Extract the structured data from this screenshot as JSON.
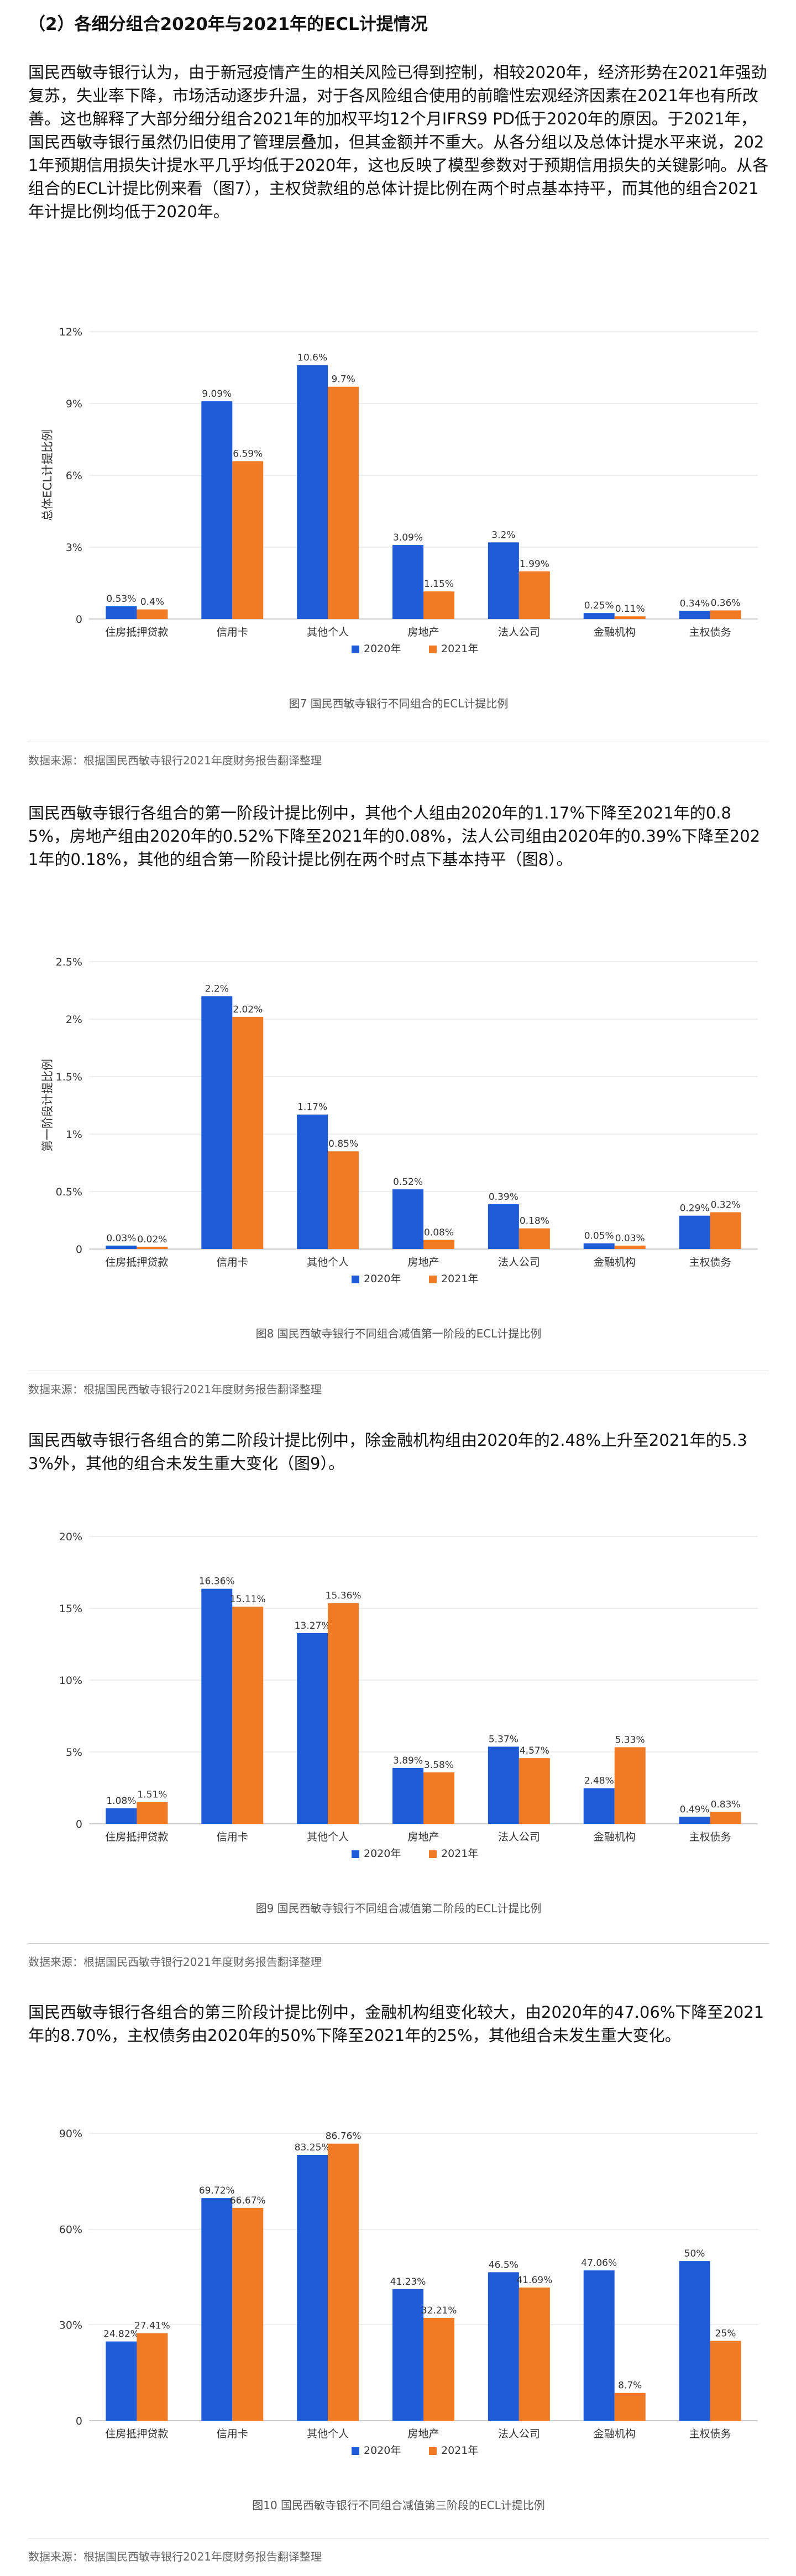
{
  "section_title": "（2）各细分组合2020年与2021年的ECL计提情况",
  "paragraphs": [
    "国民西敏寺银行认为，由于新冠疫情产生的相关风险已得到控制，相较2020年，经济形势在2021年强劲复苏，失业率下降，市场活动逐步升温，对于各风险组合使用的前瞻性宏观经济因素在2021年也有所改善。这也解释了大部分细分组合2021年的加权平均12个月IFRS9 PD低于2020年的原因。于2021年，国民西敏寺银行虽然仍旧使用了管理层叠加，但其金额并不重大。从各分组以及总体计提水平来说，2021年预期信用损失计提水平几乎均低于2020年，这也反映了模型参数对于预期信用损失的关键影响。从各组合的ECL计提比例来看（图7），主权贷款组的总体计提比例在两个时点基本持平，而其他的组合2021年计提比例均低于2020年。",
    "国民西敏寺银行各组合的第一阶段计提比例中，其他个人组由2020年的1.17%下降至2021年的0.85%，房地产组由2020年的0.52%下降至2021年的0.08%，法人公司组由2020年的0.39%下降至2021年的0.18%，其他的组合第一阶段计提比例在两个时点下基本持平（图8）。",
    "国民西敏寺银行各组合的第二阶段计提比例中，除金融机构组由2020年的2.48%上升至2021年的5.33%外，其他的组合未发生重大变化（图9）。",
    "国民西敏寺银行各组合的第三阶段计提比例中，金融机构组变化较大，由2020年的47.06%下降至2021年的8.70%，主权债务由2020年的50%下降至2021年的25%，其他组合未发生重大变化。"
  ],
  "source_note": "数据来源：根据国民西敏寺银行2021年度财务报告翻译整理",
  "series_colors": [
    "#1f5bd6",
    "#f07b24"
  ],
  "chart_data": [
    {
      "type": "bar",
      "title": "图7 国民西敏寺银行不同组合的ECL计提比例",
      "ylabel": "总体ECL计提比例",
      "xlabel": "",
      "ylim": [
        0,
        12
      ],
      "yticks": [
        0,
        3,
        6,
        9,
        12
      ],
      "ytick_labels": [
        "0",
        "3%",
        "6%",
        "9%",
        "12%"
      ],
      "grid": true,
      "legend": "bottom",
      "categories": [
        "住房抵押贷款",
        "信用卡",
        "其他个人",
        "房地产",
        "法人公司",
        "金融机构",
        "主权债务"
      ],
      "series": [
        {
          "name": "2020年",
          "values": [
            0.53,
            9.09,
            10.6,
            3.09,
            3.2,
            0.25,
            0.34
          ],
          "labels": [
            "0.53%",
            "9.09%",
            "10.6%",
            "3.09%",
            "3.2%",
            "0.25%",
            "0.34%"
          ]
        },
        {
          "name": "2021年",
          "values": [
            0.4,
            6.59,
            9.7,
            1.15,
            1.99,
            0.11,
            0.36
          ],
          "labels": [
            "0.4%",
            "6.59%",
            "9.7%",
            "1.15%",
            "1.99%",
            "0.11%",
            "0.36%"
          ]
        }
      ]
    },
    {
      "type": "bar",
      "title": "图8 国民西敏寺银行不同组合减值第一阶段的ECL计提比例",
      "ylabel": "第一阶段计提比例",
      "xlabel": "",
      "ylim": [
        0,
        2.5
      ],
      "yticks": [
        0,
        0.5,
        1,
        1.5,
        2,
        2.5
      ],
      "ytick_labels": [
        "0",
        "0.5%",
        "1%",
        "1.5%",
        "2%",
        "2.5%"
      ],
      "grid": true,
      "legend": "bottom",
      "categories": [
        "住房抵押贷款",
        "信用卡",
        "其他个人",
        "房地产",
        "法人公司",
        "金融机构",
        "主权债务"
      ],
      "series": [
        {
          "name": "2020年",
          "values": [
            0.03,
            2.2,
            1.17,
            0.52,
            0.39,
            0.05,
            0.29
          ],
          "labels": [
            "0.03%",
            "2.2%",
            "1.17%",
            "0.52%",
            "0.39%",
            "0.05%",
            "0.29%"
          ]
        },
        {
          "name": "2021年",
          "values": [
            0.02,
            2.02,
            0.85,
            0.08,
            0.18,
            0.03,
            0.32
          ],
          "labels": [
            "0.02%",
            "2.02%",
            "0.85%",
            "0.08%",
            "0.18%",
            "0.03%",
            "0.32%"
          ]
        }
      ]
    },
    {
      "type": "bar",
      "title": "图9 国民西敏寺银行不同组合减值第二阶段的ECL计提比例",
      "ylabel": "",
      "xlabel": "",
      "ylim": [
        0,
        20
      ],
      "yticks": [
        0,
        5,
        10,
        15,
        20
      ],
      "ytick_labels": [
        "0",
        "5%",
        "10%",
        "15%",
        "20%"
      ],
      "grid": true,
      "legend": "bottom",
      "categories": [
        "住房抵押贷款",
        "信用卡",
        "其他个人",
        "房地产",
        "法人公司",
        "金融机构",
        "主权债务"
      ],
      "series": [
        {
          "name": "2020年",
          "values": [
            1.08,
            16.36,
            13.27,
            3.89,
            5.37,
            2.48,
            0.49
          ],
          "labels": [
            "1.08%",
            "16.36%",
            "13.27%",
            "3.89%",
            "5.37%",
            "2.48%",
            "0.49%"
          ]
        },
        {
          "name": "2021年",
          "values": [
            1.51,
            15.11,
            15.36,
            3.58,
            4.57,
            5.33,
            0.83
          ],
          "labels": [
            "1.51%",
            "15.11%",
            "15.36%",
            "3.58%",
            "4.57%",
            "5.33%",
            "0.83%"
          ]
        }
      ]
    },
    {
      "type": "bar",
      "title": "图10 国民西敏寺银行不同组合减值第三阶段的ECL计提比例",
      "ylabel": "",
      "xlabel": "",
      "ylim": [
        0,
        90
      ],
      "yticks": [
        0,
        30,
        60,
        90
      ],
      "ytick_labels": [
        "0",
        "30%",
        "60%",
        "90%"
      ],
      "grid": true,
      "legend": "bottom",
      "categories": [
        "住房抵押贷款",
        "信用卡",
        "其他个人",
        "房地产",
        "法人公司",
        "金融机构",
        "主权债务"
      ],
      "series": [
        {
          "name": "2020年",
          "values": [
            24.82,
            69.72,
            83.25,
            41.23,
            46.5,
            47.06,
            50
          ],
          "labels": [
            "24.82%",
            "69.72%",
            "83.25%",
            "41.23%",
            "46.5%",
            "47.06%",
            "50%"
          ]
        },
        {
          "name": "2021年",
          "values": [
            27.41,
            66.67,
            86.76,
            32.21,
            41.69,
            8.7,
            25
          ],
          "labels": [
            "27.41%",
            "66.67%",
            "86.76%",
            "32.21%",
            "41.69%",
            "8.7%",
            "25%"
          ]
        }
      ]
    }
  ]
}
